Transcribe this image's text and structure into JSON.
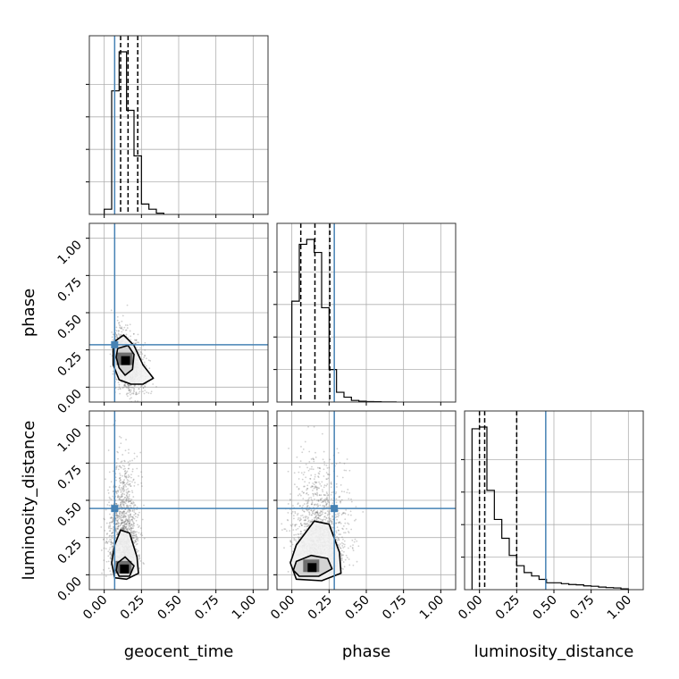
{
  "chart_data": {
    "type": "corner",
    "parameters": [
      "geocent_time",
      "phase",
      "luminosity_distance"
    ],
    "axis_range": [
      -0.1,
      1.1
    ],
    "ticks": [
      0.0,
      0.25,
      0.5,
      0.75,
      1.0
    ],
    "tick_labels": [
      "0.00",
      "0.25",
      "0.50",
      "0.75",
      "1.00"
    ],
    "grid": true,
    "colors": {
      "truth": "#4682b4",
      "quantile": "#000000",
      "hist": "#000000",
      "scatter": "#777777"
    },
    "truths": {
      "geocent_time": 0.07,
      "phase": 0.285,
      "luminosity_distance": 0.445
    },
    "quantiles": {
      "geocent_time": [
        0.11,
        0.16,
        0.225
      ],
      "phase": [
        0.06,
        0.155,
        0.255
      ],
      "luminosity_distance": [
        0.0,
        0.035,
        0.25
      ]
    },
    "histograms": {
      "geocent_time": {
        "bin_edges": [
          0.0,
          0.05,
          0.1,
          0.15,
          0.2,
          0.25,
          0.3,
          0.35,
          0.4
        ],
        "counts": [
          4,
          95,
          125,
          80,
          45,
          8,
          4,
          1
        ]
      },
      "phase": {
        "bin_edges": [
          0.0,
          0.05,
          0.1,
          0.15,
          0.2,
          0.25,
          0.3,
          0.35,
          0.4,
          0.45,
          0.5,
          0.55,
          0.6,
          0.65,
          0.7
        ],
        "counts": [
          62,
          97,
          100,
          92,
          58,
          20,
          6,
          3,
          1,
          0.5,
          0.3,
          0.2,
          0.1,
          0.1
        ]
      },
      "luminosity_distance": {
        "bin_edges": [
          -0.05,
          0.0,
          0.05,
          0.1,
          0.15,
          0.2,
          0.25,
          0.3,
          0.35,
          0.4,
          0.45,
          0.5,
          0.55,
          0.6,
          0.65,
          0.7,
          0.75,
          0.8,
          0.85,
          0.9,
          0.95,
          1.0
        ],
        "counts": [
          94,
          95,
          58,
          41,
          30,
          20,
          14,
          10,
          8,
          6,
          4,
          4,
          3.5,
          3,
          2.8,
          2.2,
          2,
          1.5,
          1.2,
          1,
          0.5
        ]
      }
    },
    "pairs": [
      {
        "x": "geocent_time",
        "y": "phase",
        "scatter_center": [
          0.13,
          0.18
        ],
        "contour_inner": [
          [
            0.09,
            0.26
          ],
          [
            0.16,
            0.28
          ],
          [
            0.2,
            0.22
          ],
          [
            0.19,
            0.12
          ],
          [
            0.14,
            0.08
          ],
          [
            0.1,
            0.13
          ],
          [
            0.08,
            0.2
          ]
        ],
        "contour_outer": [
          [
            0.06,
            0.3
          ],
          [
            0.13,
            0.35
          ],
          [
            0.2,
            0.28
          ],
          [
            0.26,
            0.15
          ],
          [
            0.33,
            0.06
          ],
          [
            0.26,
            0.02
          ],
          [
            0.18,
            0.02
          ],
          [
            0.1,
            0.05
          ],
          [
            0.06,
            0.15
          ]
        ]
      },
      {
        "x": "geocent_time",
        "y": "luminosity_distance",
        "scatter_center": [
          0.13,
          0.18
        ],
        "contour_inner": [
          [
            0.09,
            0.08
          ],
          [
            0.14,
            0.12
          ],
          [
            0.2,
            0.06
          ],
          [
            0.17,
            -0.01
          ],
          [
            0.1,
            -0.01
          ],
          [
            0.08,
            0.03
          ]
        ],
        "contour_outer": [
          [
            0.07,
            0.2
          ],
          [
            0.11,
            0.3
          ],
          [
            0.17,
            0.28
          ],
          [
            0.22,
            0.12
          ],
          [
            0.23,
            0.01
          ],
          [
            0.15,
            -0.03
          ],
          [
            0.07,
            -0.02
          ],
          [
            0.05,
            0.08
          ]
        ]
      },
      {
        "x": "phase",
        "y": "luminosity_distance",
        "scatter_center": [
          0.18,
          0.18
        ],
        "contour_inner": [
          [
            0.03,
            0.09
          ],
          [
            0.13,
            0.13
          ],
          [
            0.24,
            0.11
          ],
          [
            0.27,
            0.04
          ],
          [
            0.18,
            -0.01
          ],
          [
            0.05,
            -0.01
          ],
          [
            0.01,
            0.03
          ]
        ],
        "contour_outer": [
          [
            0.03,
            0.2
          ],
          [
            0.15,
            0.36
          ],
          [
            0.25,
            0.34
          ],
          [
            0.32,
            0.15
          ],
          [
            0.33,
            0.01
          ],
          [
            0.2,
            -0.04
          ],
          [
            0.03,
            -0.03
          ],
          [
            -0.01,
            0.08
          ]
        ]
      }
    ]
  }
}
